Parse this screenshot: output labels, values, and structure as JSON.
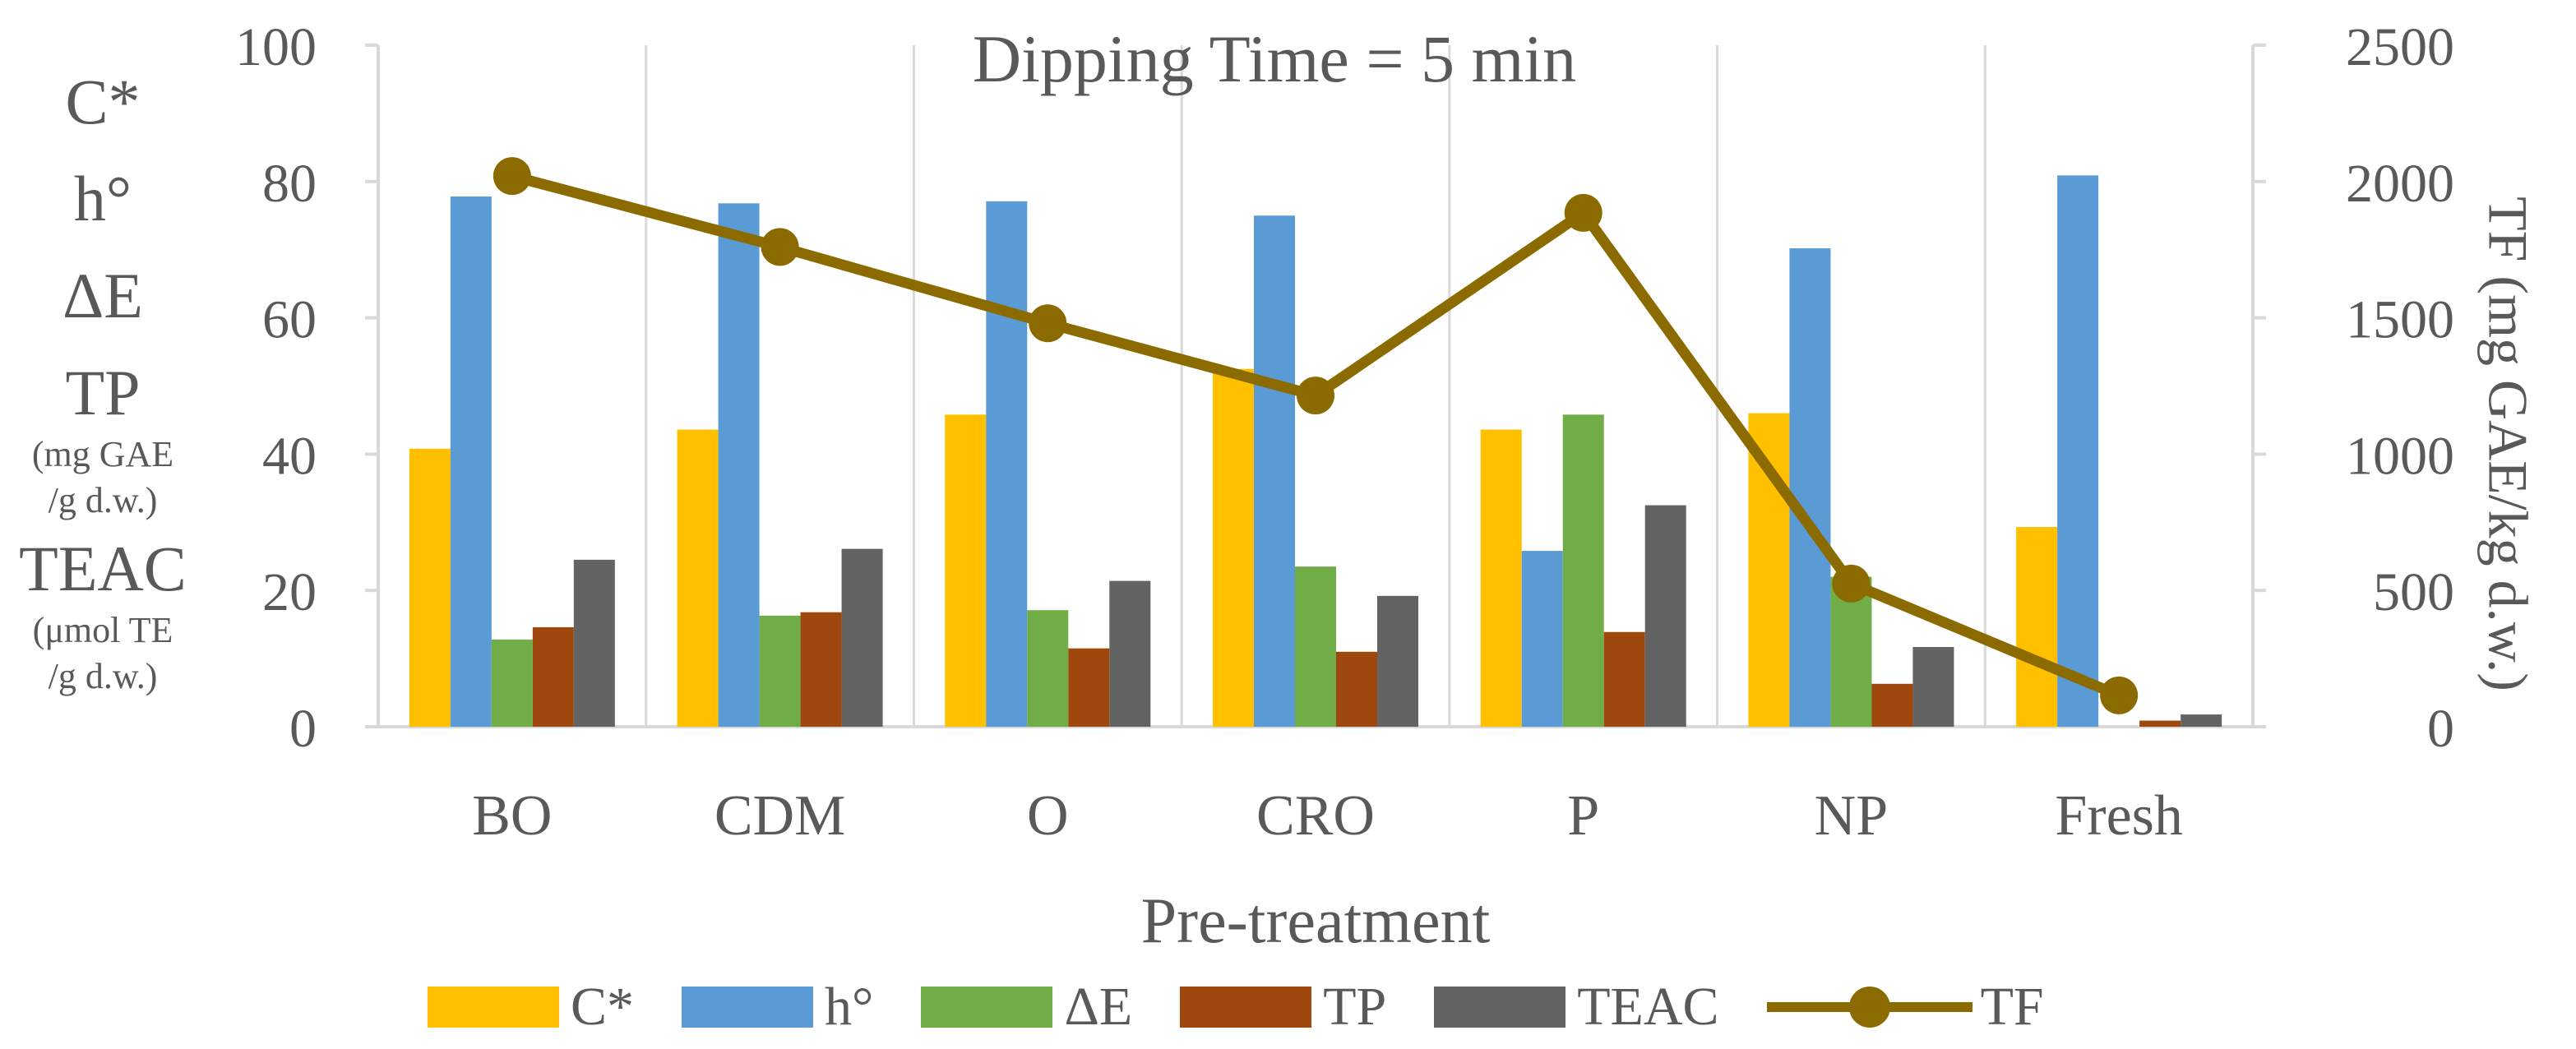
{
  "chart_data": {
    "type": "bar",
    "title": "Dipping Time = 5 min",
    "xlabel": "Pre-treatment",
    "ylabel_left": [
      "C*",
      "h°",
      "ΔE",
      "TP",
      "(mg GAE",
      "/g d.w.)",
      "TEAC",
      "(μmol TE",
      "/g d.w.)"
    ],
    "ylabel_right": "TF (mg GAE/kg d.w.)",
    "ylim_left": [
      0,
      100
    ],
    "ylim_right": [
      0,
      2500
    ],
    "yticks_left": [
      "0",
      "20",
      "40",
      "60",
      "80",
      "100"
    ],
    "yticks_right": [
      "0",
      "500",
      "1000",
      "1500",
      "2000",
      "2500"
    ],
    "categories": [
      "BO",
      "CDM",
      "O",
      "CRO",
      "P",
      "NP",
      "Fresh"
    ],
    "series": [
      {
        "name": "C*",
        "color": "#ffc000",
        "axis": "left",
        "values": [
          40.8,
          43.6,
          45.8,
          52.5,
          43.6,
          46.0,
          29.3
        ]
      },
      {
        "name": "h°",
        "color": "#5b9bd5",
        "axis": "left",
        "values": [
          77.8,
          76.8,
          77.1,
          75.0,
          25.8,
          70.2,
          80.9
        ]
      },
      {
        "name": "ΔE",
        "color": "#70ad47",
        "axis": "left",
        "values": [
          12.8,
          16.3,
          17.1,
          23.5,
          45.8,
          22.0,
          0
        ]
      },
      {
        "name": "TP",
        "color": "#9e480e",
        "axis": "left",
        "values": [
          14.6,
          16.8,
          11.5,
          11.0,
          13.9,
          6.3,
          0.9
        ]
      },
      {
        "name": "TEAC",
        "color": "#636363",
        "axis": "left",
        "values": [
          24.5,
          26.1,
          21.4,
          19.2,
          32.5,
          11.7,
          1.8
        ]
      }
    ],
    "line_series": {
      "name": "TF",
      "color": "#8b6b00",
      "axis": "right",
      "values": [
        2020,
        1760,
        1480,
        1215,
        1885,
        525,
        115
      ]
    },
    "grid": "vertical",
    "legend": "bottom"
  }
}
